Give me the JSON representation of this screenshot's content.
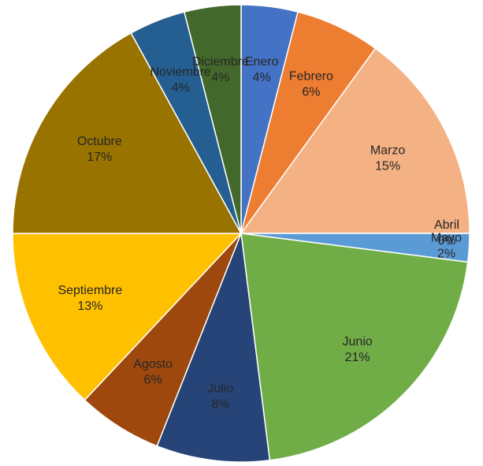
{
  "chart_data": {
    "type": "pie",
    "categories": [
      "Enero",
      "Febrero",
      "Marzo",
      "Abril",
      "Mayo",
      "Junio",
      "Julio",
      "Agosto",
      "Septiembre",
      "Octubre",
      "Noviembre",
      "Diciembre"
    ],
    "values": [
      4,
      6,
      15,
      0,
      2,
      21,
      8,
      6,
      13,
      17,
      4,
      4
    ],
    "value_labels": [
      "4%",
      "6%",
      "15%",
      "0%",
      "2%",
      "21%",
      "8%",
      "6%",
      "13%",
      "17%",
      "4%",
      "4%"
    ],
    "colors": [
      "#4472c4",
      "#ed7d31",
      "#f4b183",
      "#a5a5a5",
      "#5b9bd5",
      "#70ad47",
      "#264478",
      "#9e480e",
      "#ffc000",
      "#997300",
      "#255e91",
      "#43682b"
    ]
  }
}
